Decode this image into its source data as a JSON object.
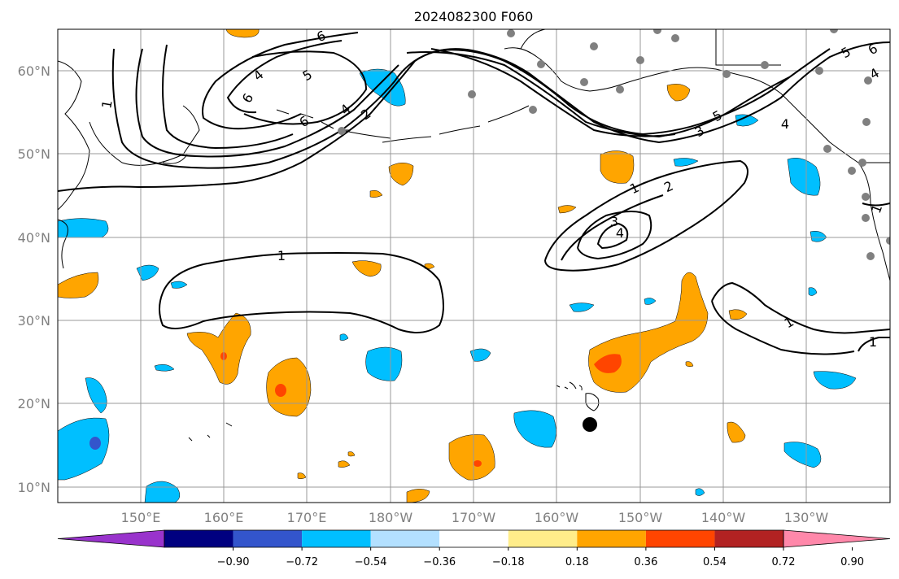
{
  "title": "2024082300 F060",
  "lat_labels": [
    "60°N",
    "50°N",
    "40°N",
    "30°N",
    "20°N",
    "10°N"
  ],
  "lon_labels": [
    "150°E",
    "160°E",
    "170°E",
    "180°W",
    "170°W",
    "160°W",
    "150°W",
    "140°W",
    "130°W"
  ],
  "colorbar": {
    "colors": [
      "#9933cc",
      "#000080",
      "#3355cc",
      "#00bfff",
      "#b3e0ff",
      "#ffffff",
      "#ffed8a",
      "#ffa500",
      "#ff4500",
      "#b22222",
      "#ff88aa"
    ],
    "tick_labels": [
      "−0.90",
      "−0.72",
      "−0.54",
      "−0.36",
      "−0.18",
      "0.18",
      "0.36",
      "0.54",
      "0.72",
      "0.90"
    ]
  },
  "contour_labels": [
    "1",
    "2",
    "3",
    "4",
    "5",
    "6"
  ]
}
